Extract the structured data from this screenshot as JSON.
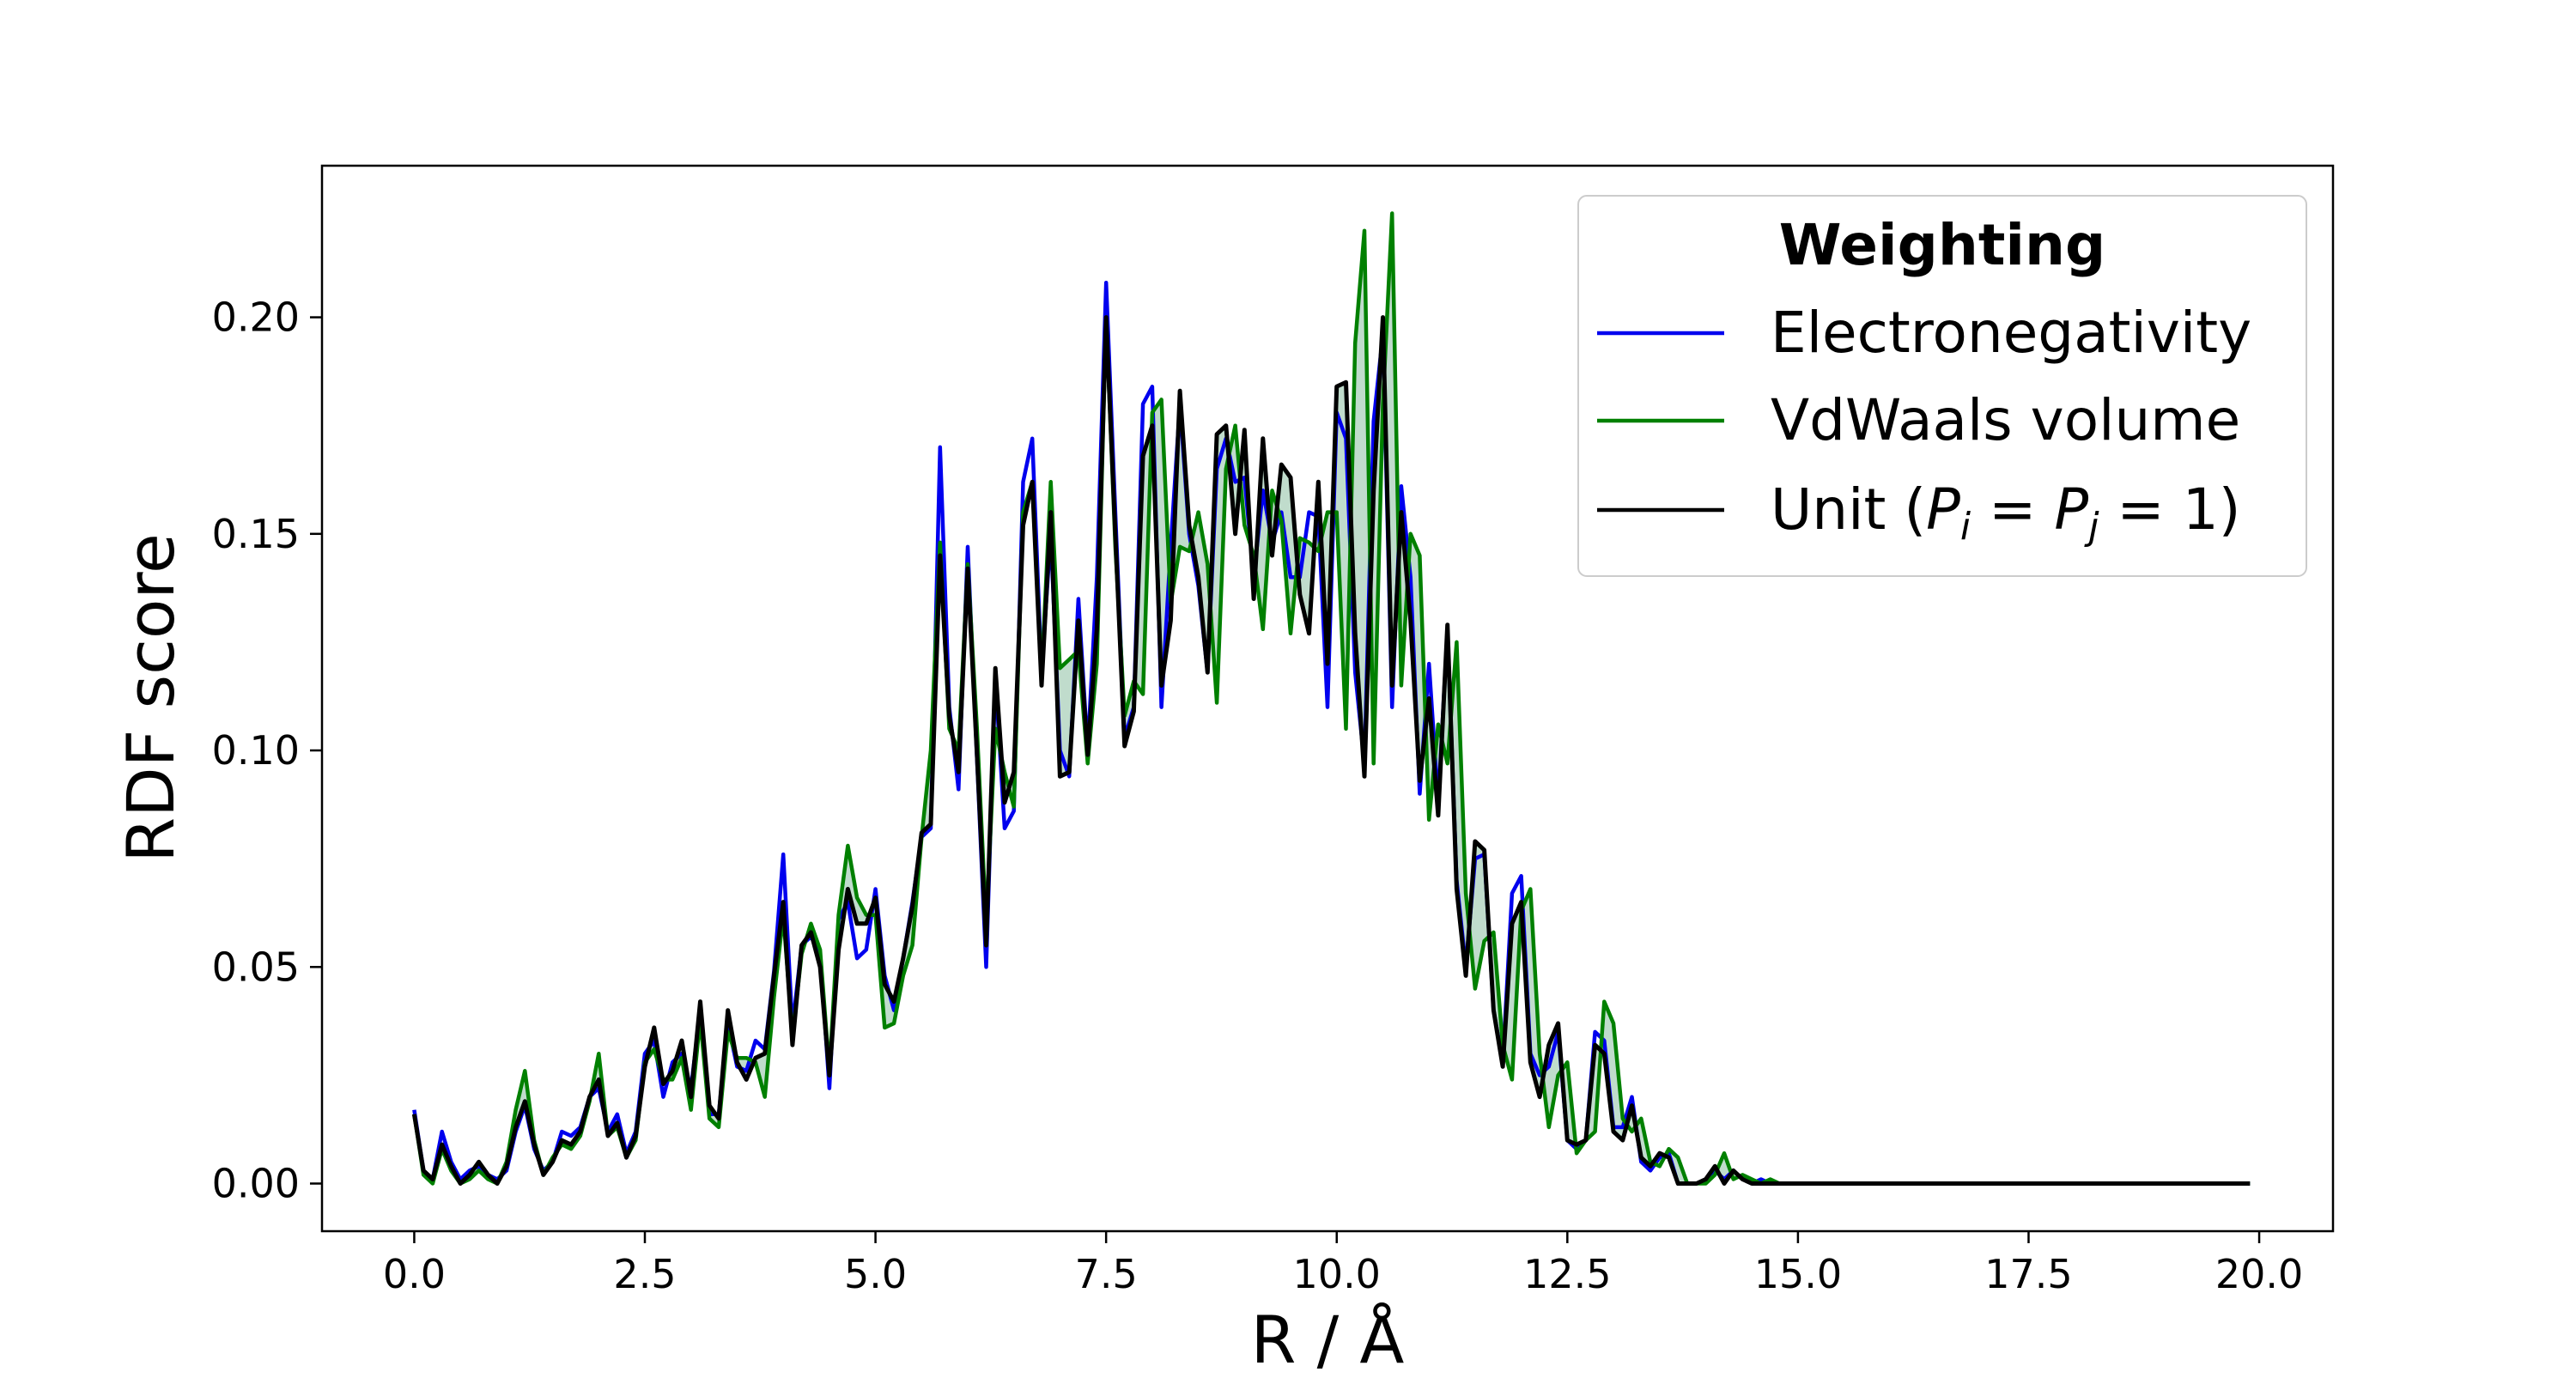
{
  "chart_data": {
    "type": "line",
    "xlabel": "R / Å",
    "ylabel": "RDF score",
    "xlim": [
      -1.0,
      20.8
    ],
    "ylim": [
      -0.011,
      0.235
    ],
    "grid": false,
    "x_ticks": [
      0.0,
      2.5,
      5.0,
      7.5,
      10.0,
      12.5,
      15.0,
      17.5,
      20.0
    ],
    "x_tick_labels": [
      "0.0",
      "2.5",
      "5.0",
      "7.5",
      "10.0",
      "12.5",
      "15.0",
      "17.5",
      "20.0"
    ],
    "y_ticks": [
      0.0,
      0.05,
      0.1,
      0.15,
      0.2
    ],
    "y_tick_labels": [
      "0.00",
      "0.05",
      "0.10",
      "0.15",
      "0.20"
    ],
    "legend": {
      "title": "Weighting",
      "location": "upper right",
      "entries": [
        {
          "label": "Electronegativity",
          "color": "#0000ee"
        },
        {
          "label": "VdWaals volume",
          "color": "#008000"
        },
        {
          "label": "Unit (",
          "math": "P_i = P_j = 1",
          "suffix": ")",
          "color": "#000000"
        }
      ]
    },
    "fill_between": {
      "color": "#2e8b57",
      "opacity": 0.3,
      "between": [
        "VdWaals volume",
        "Unit (P_i = P_j = 1)"
      ]
    },
    "x_start": 0.0,
    "x_step": 0.1,
    "tail_zero_until": 19.9,
    "series": [
      {
        "name": "Electronegativity",
        "color": "#0000ee",
        "values": [
          0.017,
          0.003,
          0.001,
          0.012,
          0.005,
          0.001,
          0.003,
          0.004,
          0.002,
          0.001,
          0.003,
          0.012,
          0.018,
          0.008,
          0.003,
          0.005,
          0.012,
          0.011,
          0.013,
          0.02,
          0.022,
          0.012,
          0.016,
          0.007,
          0.012,
          0.03,
          0.033,
          0.02,
          0.028,
          0.03,
          0.022,
          0.04,
          0.016,
          0.016,
          0.037,
          0.027,
          0.026,
          0.033,
          0.031,
          0.049,
          0.076,
          0.036,
          0.055,
          0.057,
          0.053,
          0.022,
          0.061,
          0.065,
          0.052,
          0.054,
          0.068,
          0.048,
          0.04,
          0.052,
          0.065,
          0.08,
          0.082,
          0.17,
          0.11,
          0.091,
          0.147,
          0.098,
          0.05,
          0.117,
          0.082,
          0.086,
          0.162,
          0.172,
          0.118,
          0.15,
          0.1,
          0.094,
          0.135,
          0.1,
          0.14,
          0.208,
          0.155,
          0.103,
          0.11,
          0.18,
          0.184,
          0.11,
          0.147,
          0.18,
          0.15,
          0.138,
          0.118,
          0.165,
          0.172,
          0.162,
          0.163,
          0.14,
          0.16,
          0.148,
          0.155,
          0.14,
          0.14,
          0.155,
          0.154,
          0.11,
          0.178,
          0.172,
          0.118,
          0.097,
          0.176,
          0.196,
          0.11,
          0.161,
          0.14,
          0.09,
          0.12,
          0.088,
          0.128,
          0.07,
          0.05,
          0.075,
          0.076,
          0.04,
          0.028,
          0.067,
          0.071,
          0.03,
          0.025,
          0.027,
          0.035,
          0.01,
          0.008,
          0.01,
          0.035,
          0.033,
          0.013,
          0.013,
          0.02,
          0.005,
          0.003,
          0.006,
          0.007,
          0.0,
          0.0,
          0.0,
          0.001,
          0.003,
          0.001,
          0.003,
          0.001,
          0.0,
          0.001,
          0.0
        ]
      },
      {
        "name": "VdWaals volume",
        "color": "#008000",
        "values": [
          0.016,
          0.002,
          0.0,
          0.008,
          0.003,
          0.0,
          0.001,
          0.003,
          0.001,
          0.0,
          0.005,
          0.017,
          0.026,
          0.01,
          0.002,
          0.006,
          0.009,
          0.008,
          0.011,
          0.019,
          0.03,
          0.011,
          0.013,
          0.006,
          0.01,
          0.028,
          0.031,
          0.024,
          0.024,
          0.029,
          0.017,
          0.038,
          0.015,
          0.013,
          0.035,
          0.029,
          0.029,
          0.028,
          0.02,
          0.043,
          0.062,
          0.034,
          0.053,
          0.06,
          0.054,
          0.026,
          0.062,
          0.078,
          0.066,
          0.062,
          0.062,
          0.036,
          0.037,
          0.048,
          0.055,
          0.08,
          0.1,
          0.148,
          0.105,
          0.1,
          0.143,
          0.105,
          0.06,
          0.105,
          0.095,
          0.087,
          0.155,
          0.162,
          0.117,
          0.162,
          0.119,
          0.121,
          0.123,
          0.097,
          0.12,
          0.2,
          0.147,
          0.108,
          0.116,
          0.113,
          0.178,
          0.181,
          0.134,
          0.147,
          0.146,
          0.155,
          0.143,
          0.111,
          0.165,
          0.175,
          0.152,
          0.145,
          0.128,
          0.16,
          0.153,
          0.127,
          0.149,
          0.148,
          0.146,
          0.155,
          0.155,
          0.105,
          0.194,
          0.22,
          0.097,
          0.18,
          0.224,
          0.115,
          0.15,
          0.145,
          0.084,
          0.106,
          0.097,
          0.125,
          0.067,
          0.045,
          0.056,
          0.058,
          0.032,
          0.024,
          0.063,
          0.068,
          0.03,
          0.013,
          0.025,
          0.028,
          0.007,
          0.01,
          0.012,
          0.042,
          0.037,
          0.015,
          0.012,
          0.015,
          0.005,
          0.004,
          0.008,
          0.006,
          0.0,
          0.0,
          0.0,
          0.002,
          0.007,
          0.001,
          0.002,
          0.001,
          0.0,
          0.001,
          0.0
        ]
      },
      {
        "name": "Unit (P_i = P_j = 1)",
        "color": "#000000",
        "values": [
          0.016,
          0.003,
          0.001,
          0.009,
          0.004,
          0.0,
          0.002,
          0.005,
          0.002,
          0.0,
          0.004,
          0.013,
          0.019,
          0.009,
          0.002,
          0.005,
          0.01,
          0.009,
          0.012,
          0.02,
          0.024,
          0.011,
          0.014,
          0.006,
          0.011,
          0.027,
          0.036,
          0.023,
          0.026,
          0.033,
          0.02,
          0.042,
          0.018,
          0.015,
          0.04,
          0.028,
          0.024,
          0.029,
          0.03,
          0.048,
          0.065,
          0.032,
          0.055,
          0.058,
          0.05,
          0.025,
          0.054,
          0.068,
          0.06,
          0.06,
          0.066,
          0.046,
          0.042,
          0.052,
          0.064,
          0.081,
          0.083,
          0.145,
          0.108,
          0.095,
          0.142,
          0.099,
          0.055,
          0.119,
          0.088,
          0.095,
          0.152,
          0.162,
          0.115,
          0.155,
          0.094,
          0.095,
          0.13,
          0.099,
          0.128,
          0.2,
          0.15,
          0.101,
          0.109,
          0.168,
          0.175,
          0.115,
          0.13,
          0.183,
          0.152,
          0.14,
          0.118,
          0.173,
          0.175,
          0.15,
          0.174,
          0.135,
          0.172,
          0.145,
          0.166,
          0.163,
          0.136,
          0.127,
          0.162,
          0.12,
          0.184,
          0.185,
          0.127,
          0.094,
          0.16,
          0.2,
          0.115,
          0.155,
          0.13,
          0.093,
          0.112,
          0.085,
          0.129,
          0.068,
          0.048,
          0.079,
          0.077,
          0.04,
          0.027,
          0.06,
          0.065,
          0.028,
          0.02,
          0.032,
          0.037,
          0.01,
          0.009,
          0.01,
          0.032,
          0.03,
          0.012,
          0.01,
          0.018,
          0.006,
          0.004,
          0.007,
          0.006,
          0.0,
          0.0,
          0.0,
          0.001,
          0.004,
          0.0,
          0.003,
          0.001,
          0.0,
          0.0,
          0.0
        ]
      }
    ]
  }
}
